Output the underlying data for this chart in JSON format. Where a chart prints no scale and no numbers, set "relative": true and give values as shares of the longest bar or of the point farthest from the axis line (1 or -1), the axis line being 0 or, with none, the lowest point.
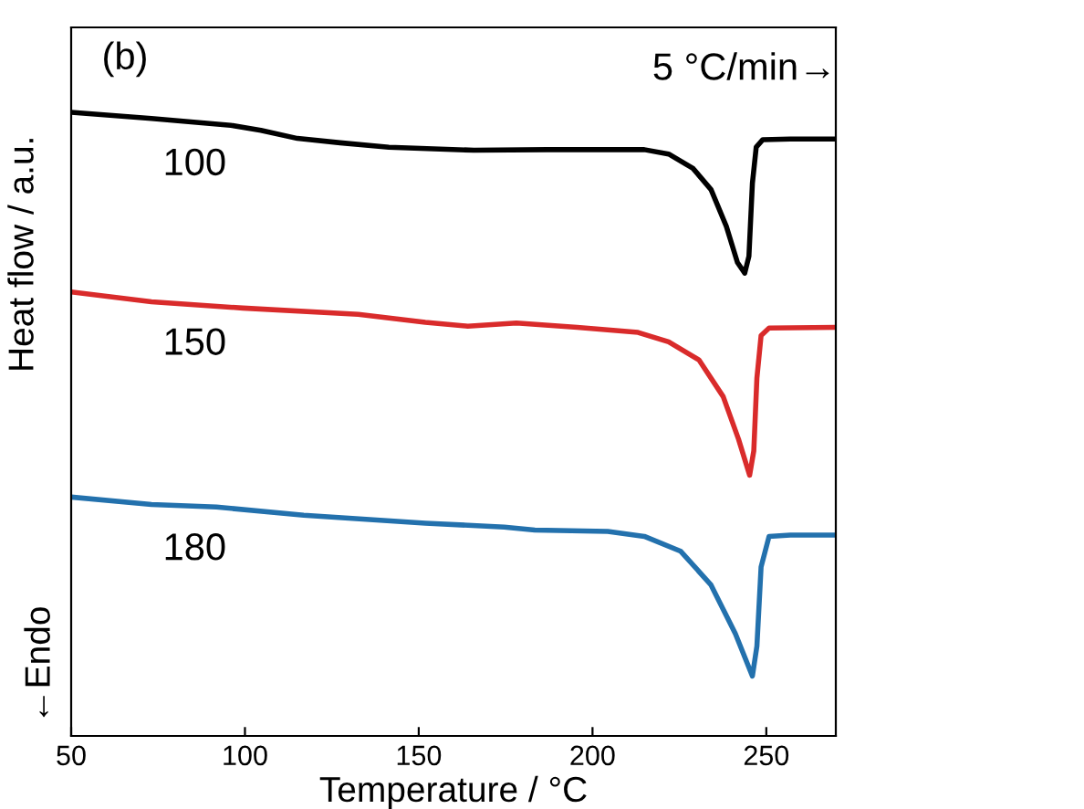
{
  "chart_data": {
    "type": "line",
    "relative": true,
    "xlabel": "Temperature / °C",
    "ylabel": "Heat flow / a.u.",
    "xlim": [
      50,
      270
    ],
    "xticks": [
      50,
      100,
      150,
      200,
      250
    ],
    "tick_labels": "x",
    "grid": false,
    "legend": false,
    "marker": "none",
    "line_style": "solid",
    "annotations": [
      "(b)",
      "5 °C/min→",
      "←Endo"
    ],
    "series": [
      {
        "name": "100",
        "color": "#000000",
        "x": [
          50,
          73.1,
          95.9,
          104.6,
          115.1,
          127.4,
          141.4,
          165.9,
          186.9,
          214.9,
          221.9,
          228.9,
          234.1,
          238.5,
          241.7,
          243.8,
          245.0,
          246.0,
          247.1,
          249.0,
          256.9,
          270
        ],
        "values": [
          1.0,
          0.99,
          0.979,
          0.971,
          0.958,
          0.951,
          0.944,
          0.939,
          0.94,
          0.94,
          0.933,
          0.91,
          0.876,
          0.817,
          0.759,
          0.742,
          0.769,
          0.886,
          0.944,
          0.956,
          0.957,
          0.957
        ]
      },
      {
        "name": "150",
        "color": "#d92b2b",
        "x": [
          50,
          73.1,
          99.4,
          132.6,
          151.9,
          164.1,
          178.1,
          195.6,
          213.1,
          221.9,
          230.6,
          237.6,
          242.0,
          245.2,
          246.4,
          247.3,
          248.5,
          250.8,
          270
        ],
        "values": [
          0.712,
          0.696,
          0.686,
          0.676,
          0.663,
          0.657,
          0.662,
          0.655,
          0.647,
          0.632,
          0.603,
          0.544,
          0.476,
          0.418,
          0.457,
          0.574,
          0.642,
          0.654,
          0.655
        ]
      },
      {
        "name": "180",
        "color": "#2371ad",
        "x": [
          50,
          73.1,
          91.8,
          116.9,
          151.9,
          174.6,
          183.4,
          204.4,
          214.9,
          225.4,
          234.1,
          241.1,
          246.0,
          247.3,
          248.5,
          250.8,
          256.9,
          270
        ],
        "values": [
          0.383,
          0.371,
          0.367,
          0.354,
          0.341,
          0.335,
          0.33,
          0.328,
          0.32,
          0.296,
          0.242,
          0.164,
          0.096,
          0.144,
          0.271,
          0.32,
          0.322,
          0.322
        ]
      }
    ]
  }
}
